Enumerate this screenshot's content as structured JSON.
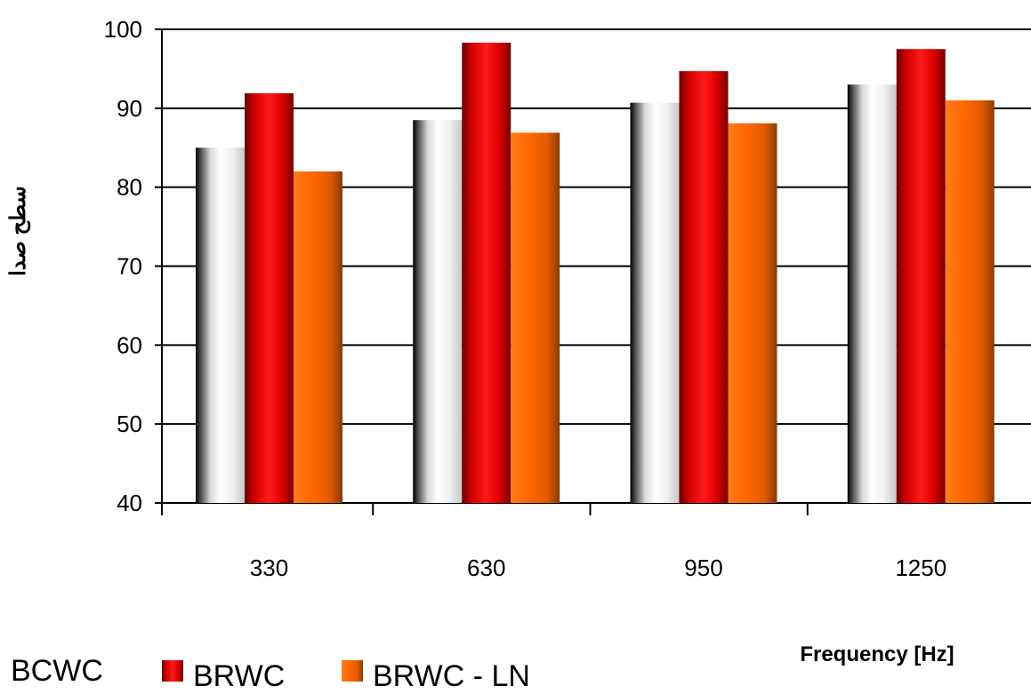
{
  "chart_data": {
    "type": "bar",
    "categories": [
      "330",
      "630",
      "950",
      "1250"
    ],
    "series": [
      {
        "name": "BCWC",
        "values": [
          85,
          88.5,
          90.7,
          93
        ]
      },
      {
        "name": "BRWC",
        "values": [
          91.9,
          98.3,
          94.7,
          97.5
        ]
      },
      {
        "name": "BRWC - LN",
        "values": [
          82,
          86.9,
          88.1,
          91
        ]
      }
    ],
    "ylim": [
      40,
      100
    ],
    "yticks": [
      "40",
      "50",
      "60",
      "70",
      "80",
      "90",
      "100"
    ],
    "xlabel": "Frequency [Hz]",
    "ylabel": "سطح صدا",
    "grid": true,
    "legend_position": "bottom-left"
  },
  "colors": {
    "BCWC": "#f0f0f0",
    "BRWC": "#e00000",
    "BRWC - LN": "#ff6600"
  }
}
